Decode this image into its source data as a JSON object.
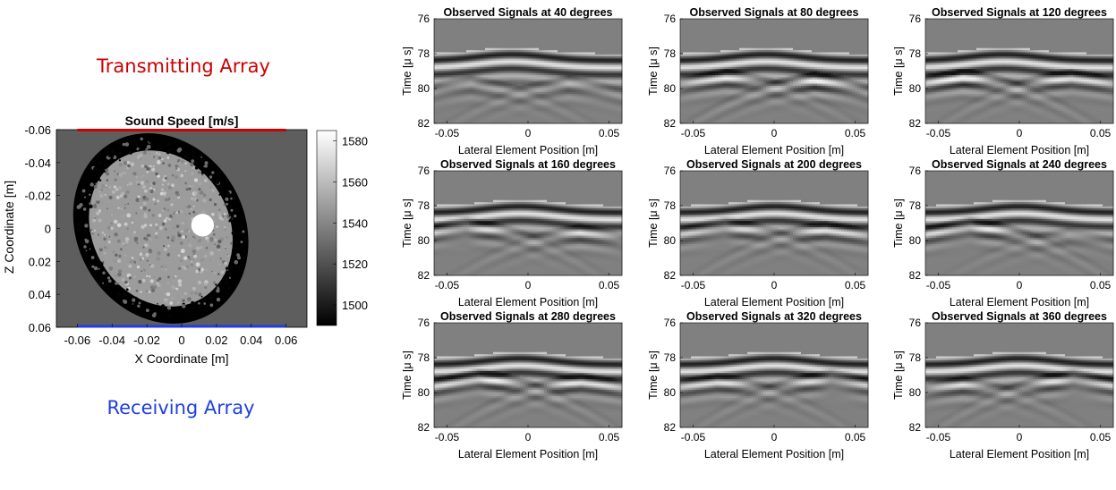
{
  "annotations": {
    "transmitting": "Transmitting Array",
    "receiving": "Receiving Array",
    "transmitting_color": "#cc0000",
    "receiving_color": "#1f3fe0"
  },
  "chart_data": [
    {
      "type": "heatmap",
      "title": "Sound Speed [m/s]",
      "xlabel": "X Coordinate [m]",
      "ylabel": "Z Coordinate [m]",
      "xticks": [
        "-0.06",
        "-0.04",
        "-0.02",
        "0",
        "0.02",
        "0.04",
        "0.06"
      ],
      "yticks": [
        "-0.06",
        "-0.04",
        "-0.02",
        "0",
        "0.02",
        "0.04",
        "0.06"
      ],
      "xlim": [
        -0.072,
        0.072
      ],
      "ylim": [
        -0.06,
        0.06
      ],
      "y_reversed": true,
      "colormap": "gray",
      "background_value": 1525,
      "colorbar": {
        "ticks": [
          "1500",
          "1520",
          "1540",
          "1560",
          "1580"
        ],
        "values": [
          1500,
          1520,
          1540,
          1560,
          1580
        ],
        "range": [
          1490,
          1585
        ]
      },
      "inclusion": {
        "center_x": 0.012,
        "center_z": -0.002,
        "radius": 0.005,
        "value": 1585
      },
      "breast_outline": {
        "center_x": -0.012,
        "center_z": 0.0,
        "semi_axis_x": 0.048,
        "semi_axis_z": 0.06,
        "tilt_deg": -30,
        "fat_value": 1490,
        "gland_value": 1548
      },
      "transmitting_array": {
        "x_range": [
          -0.06,
          0.06
        ],
        "z": -0.06,
        "color": "#cc0000"
      },
      "receiving_array": {
        "x_range": [
          -0.06,
          0.06
        ],
        "z": 0.06,
        "color": "#1f3fe0"
      }
    },
    {
      "type": "heatmap",
      "colormap": "gray",
      "xlabel": "Lateral Element Position [m]",
      "ylabel": "Time [μ s]",
      "xticks": [
        "-0.05",
        "0",
        "0.05"
      ],
      "xtick_values": [
        -0.05,
        0,
        0.05
      ],
      "yticks": [
        "76",
        "78",
        "80",
        "82"
      ],
      "ytick_values": [
        76,
        78,
        80,
        82
      ],
      "xlim": [
        -0.058,
        0.058
      ],
      "ylim": [
        76,
        82
      ],
      "panels": [
        {
          "title": "Observed Signals at 40 degrees",
          "angle": 40,
          "bump_center": -0.01,
          "events": [
            {
              "x": -0.035,
              "t": 79.6,
              "amp": 0.6
            },
            {
              "x": 0.025,
              "t": 79.6,
              "amp": 0.6
            }
          ]
        },
        {
          "title": "Observed Signals at 80 degrees",
          "angle": 80,
          "bump_center": -0.005,
          "events": [
            {
              "x": -0.03,
              "t": 79.2,
              "amp": 0.7
            },
            {
              "x": 0.025,
              "t": 79.4,
              "amp": 1.0
            }
          ]
        },
        {
          "title": "Observed Signals at 120 degrees",
          "angle": 120,
          "bump_center": -0.01,
          "events": [
            {
              "x": -0.035,
              "t": 79.2,
              "amp": 1.0
            },
            {
              "x": 0.032,
              "t": 79.2,
              "amp": 0.8
            }
          ]
        },
        {
          "title": "Observed Signals at 160 degrees",
          "angle": 160,
          "bump_center": -0.005,
          "events": [
            {
              "x": -0.038,
              "t": 79.0,
              "amp": 0.8
            },
            {
              "x": 0.032,
              "t": 79.4,
              "amp": 0.6
            }
          ]
        },
        {
          "title": "Observed Signals at 200 degrees",
          "angle": 200,
          "bump_center": 0.0,
          "events": [
            {
              "x": -0.03,
              "t": 79.0,
              "amp": 0.7
            },
            {
              "x": 0.032,
              "t": 79.2,
              "amp": 0.7
            }
          ]
        },
        {
          "title": "Observed Signals at 240 degrees",
          "angle": 240,
          "bump_center": 0.0,
          "events": [
            {
              "x": -0.03,
              "t": 79.0,
              "amp": 1.0
            },
            {
              "x": 0.03,
              "t": 79.6,
              "amp": 0.4
            }
          ]
        },
        {
          "title": "Observed Signals at 280 degrees",
          "angle": 280,
          "bump_center": -0.005,
          "events": [
            {
              "x": -0.03,
              "t": 79.0,
              "amp": 1.0
            },
            {
              "x": 0.033,
              "t": 79.2,
              "amp": 0.8
            }
          ]
        },
        {
          "title": "Observed Signals at 320 degrees",
          "angle": 320,
          "bump_center": 0.0,
          "events": [
            {
              "x": -0.035,
              "t": 79.2,
              "amp": 0.7
            },
            {
              "x": 0.035,
              "t": 79.0,
              "amp": 0.8
            }
          ]
        },
        {
          "title": "Observed Signals at 360 degrees",
          "angle": 360,
          "bump_center": 0.0,
          "events": [
            {
              "x": -0.035,
              "t": 79.4,
              "amp": 0.6
            },
            {
              "x": 0.033,
              "t": 79.0,
              "amp": 0.9
            }
          ]
        }
      ]
    }
  ]
}
